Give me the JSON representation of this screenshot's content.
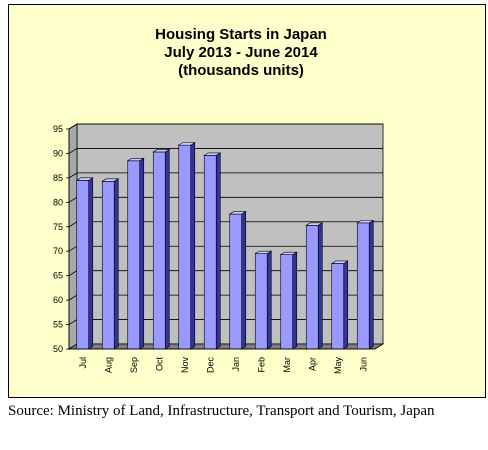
{
  "chart_data": {
    "type": "bar",
    "title_lines": [
      "Housing Starts in Japan",
      "July 2013 - June 2014",
      "(thousands units)"
    ],
    "categories": [
      "Jul",
      "Aug",
      "Sep",
      "Oct",
      "Nov",
      "Dec",
      "Jan",
      "Feb",
      "Mar",
      "Apr",
      "May",
      "Jun"
    ],
    "values": [
      84.5,
      84.3,
      88.5,
      90.3,
      91.7,
      89.6,
      77.6,
      69.5,
      69.3,
      75.3,
      67.5,
      75.8
    ],
    "ylim": [
      50,
      95
    ],
    "yticks": [
      50,
      55,
      60,
      65,
      70,
      75,
      80,
      85,
      90,
      95
    ],
    "grid": true,
    "legend": "none",
    "colors": {
      "background": "#ffffcc",
      "plot_wall": "#c0c0c0",
      "plot_floor": "#808080",
      "bar_front": "#9999ff",
      "bar_side": "#333399",
      "bar_top": "#ccccff"
    }
  },
  "source": "Source: Ministry of Land, Infrastructure, Transport and Tourism, Japan"
}
